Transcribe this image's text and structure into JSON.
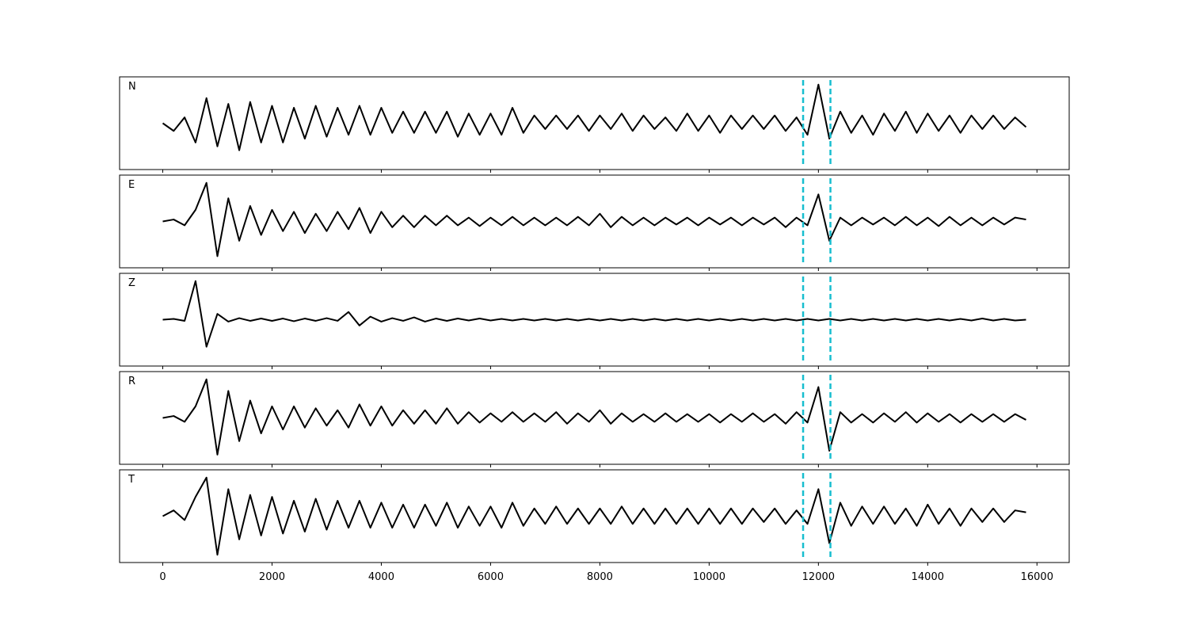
{
  "chart_data": {
    "type": "line",
    "x": [
      0,
      200,
      400,
      600,
      800,
      1000,
      1200,
      1400,
      1600,
      1800,
      2000,
      2200,
      2400,
      2600,
      2800,
      3000,
      3200,
      3400,
      3600,
      3800,
      4000,
      4200,
      4400,
      4600,
      4800,
      5000,
      5200,
      5400,
      5600,
      5800,
      6000,
      6200,
      6400,
      6600,
      6800,
      7000,
      7200,
      7400,
      7600,
      7800,
      8000,
      8200,
      8400,
      8600,
      8800,
      9000,
      9200,
      9400,
      9600,
      9800,
      10000,
      10200,
      10400,
      10600,
      10800,
      11000,
      11200,
      11400,
      11600,
      11800,
      12000,
      12200,
      12400,
      12600,
      12800,
      13000,
      13200,
      13400,
      13600,
      13800,
      14000,
      14200,
      14400,
      14600,
      14800,
      15000,
      15200,
      15400,
      15600,
      15800
    ],
    "series": [
      {
        "name": "N",
        "color": "#000000",
        "values": [
          0,
          -0.2,
          0.15,
          -0.5,
          0.65,
          -0.6,
          0.5,
          -0.7,
          0.55,
          -0.5,
          0.45,
          -0.5,
          0.4,
          -0.4,
          0.45,
          -0.35,
          0.4,
          -0.3,
          0.45,
          -0.3,
          0.4,
          -0.25,
          0.3,
          -0.25,
          0.3,
          -0.25,
          0.3,
          -0.35,
          0.25,
          -0.3,
          0.25,
          -0.3,
          0.4,
          -0.25,
          0.2,
          -0.15,
          0.2,
          -0.15,
          0.2,
          -0.2,
          0.2,
          -0.15,
          0.25,
          -0.2,
          0.2,
          -0.15,
          0.15,
          -0.2,
          0.25,
          -0.2,
          0.2,
          -0.25,
          0.2,
          -0.15,
          0.2,
          -0.15,
          0.2,
          -0.2,
          0.15,
          -0.3,
          1.0,
          -0.4,
          0.3,
          -0.25,
          0.2,
          -0.3,
          0.25,
          -0.2,
          0.3,
          -0.25,
          0.25,
          -0.2,
          0.2,
          -0.25,
          0.2,
          -0.15,
          0.2,
          -0.15,
          0.15,
          -0.1
        ]
      },
      {
        "name": "E",
        "color": "#000000",
        "values": [
          0,
          0.05,
          -0.1,
          0.3,
          1.0,
          -0.9,
          0.6,
          -0.5,
          0.4,
          -0.35,
          0.3,
          -0.25,
          0.25,
          -0.3,
          0.2,
          -0.25,
          0.25,
          -0.2,
          0.35,
          -0.3,
          0.25,
          -0.15,
          0.15,
          -0.15,
          0.15,
          -0.1,
          0.15,
          -0.1,
          0.1,
          -0.12,
          0.1,
          -0.1,
          0.12,
          -0.1,
          0.1,
          -0.1,
          0.1,
          -0.1,
          0.12,
          -0.1,
          0.2,
          -0.15,
          0.12,
          -0.1,
          0.1,
          -0.1,
          0.1,
          -0.08,
          0.1,
          -0.1,
          0.1,
          -0.08,
          0.1,
          -0.1,
          0.1,
          -0.08,
          0.1,
          -0.15,
          0.1,
          -0.1,
          0.7,
          -0.5,
          0.1,
          -0.1,
          0.1,
          -0.08,
          0.1,
          -0.1,
          0.12,
          -0.1,
          0.1,
          -0.12,
          0.12,
          -0.1,
          0.1,
          -0.1,
          0.1,
          -0.08,
          0.1,
          0.05
        ]
      },
      {
        "name": "Z",
        "color": "#000000",
        "values": [
          0,
          0.02,
          -0.03,
          1.0,
          -0.7,
          0.15,
          -0.05,
          0.04,
          -0.03,
          0.03,
          -0.03,
          0.03,
          -0.04,
          0.03,
          -0.03,
          0.04,
          -0.03,
          0.2,
          -0.15,
          0.08,
          -0.05,
          0.04,
          -0.03,
          0.06,
          -0.05,
          0.03,
          -0.03,
          0.03,
          -0.02,
          0.03,
          -0.02,
          0.02,
          -0.02,
          0.02,
          -0.02,
          0.02,
          -0.02,
          0.02,
          -0.02,
          0.02,
          -0.02,
          0.02,
          -0.02,
          0.02,
          -0.02,
          0.02,
          -0.02,
          0.02,
          -0.02,
          0.02,
          -0.02,
          0.02,
          -0.02,
          0.02,
          -0.02,
          0.02,
          -0.02,
          0.02,
          -0.02,
          0.02,
          -0.02,
          0.02,
          -0.02,
          0.02,
          -0.02,
          0.02,
          -0.02,
          0.02,
          -0.02,
          0.02,
          -0.02,
          0.02,
          -0.02,
          0.02,
          -0.02,
          0.03,
          -0.02,
          0.02,
          -0.02,
          0.0
        ]
      },
      {
        "name": "R",
        "color": "#000000",
        "values": [
          0,
          0.05,
          -0.1,
          0.3,
          1.0,
          -0.95,
          0.7,
          -0.6,
          0.45,
          -0.4,
          0.3,
          -0.3,
          0.3,
          -0.25,
          0.25,
          -0.2,
          0.2,
          -0.25,
          0.35,
          -0.2,
          0.3,
          -0.2,
          0.2,
          -0.15,
          0.2,
          -0.15,
          0.25,
          -0.15,
          0.15,
          -0.12,
          0.12,
          -0.1,
          0.15,
          -0.1,
          0.12,
          -0.1,
          0.15,
          -0.15,
          0.12,
          -0.1,
          0.2,
          -0.15,
          0.12,
          -0.1,
          0.1,
          -0.1,
          0.12,
          -0.1,
          0.1,
          -0.1,
          0.1,
          -0.12,
          0.1,
          -0.1,
          0.12,
          -0.1,
          0.1,
          -0.15,
          0.15,
          -0.12,
          0.8,
          -0.85,
          0.15,
          -0.12,
          0.1,
          -0.12,
          0.12,
          -0.1,
          0.15,
          -0.12,
          0.12,
          -0.1,
          0.1,
          -0.12,
          0.1,
          -0.1,
          0.1,
          -0.1,
          0.1,
          -0.05
        ]
      },
      {
        "name": "T",
        "color": "#000000",
        "values": [
          0,
          0.15,
          -0.1,
          0.5,
          1.0,
          -1.0,
          0.7,
          -0.6,
          0.55,
          -0.5,
          0.5,
          -0.45,
          0.4,
          -0.4,
          0.45,
          -0.35,
          0.4,
          -0.3,
          0.4,
          -0.3,
          0.35,
          -0.3,
          0.3,
          -0.3,
          0.3,
          -0.25,
          0.35,
          -0.3,
          0.25,
          -0.25,
          0.25,
          -0.3,
          0.35,
          -0.25,
          0.2,
          -0.2,
          0.25,
          -0.2,
          0.2,
          -0.2,
          0.2,
          -0.2,
          0.25,
          -0.2,
          0.2,
          -0.2,
          0.2,
          -0.2,
          0.2,
          -0.2,
          0.2,
          -0.2,
          0.2,
          -0.2,
          0.2,
          -0.15,
          0.2,
          -0.2,
          0.15,
          -0.2,
          0.7,
          -0.7,
          0.35,
          -0.25,
          0.25,
          -0.2,
          0.25,
          -0.2,
          0.2,
          -0.25,
          0.3,
          -0.2,
          0.2,
          -0.25,
          0.2,
          -0.15,
          0.2,
          -0.15,
          0.15,
          0.1
        ]
      }
    ],
    "xlim": [
      -790,
      16590
    ],
    "xticks": [
      0,
      2000,
      4000,
      6000,
      8000,
      10000,
      12000,
      14000,
      16000
    ],
    "ylim": [
      -1.2,
      1.2
    ],
    "vlines": [
      11720,
      12220
    ],
    "vline_color": "#17becf"
  }
}
